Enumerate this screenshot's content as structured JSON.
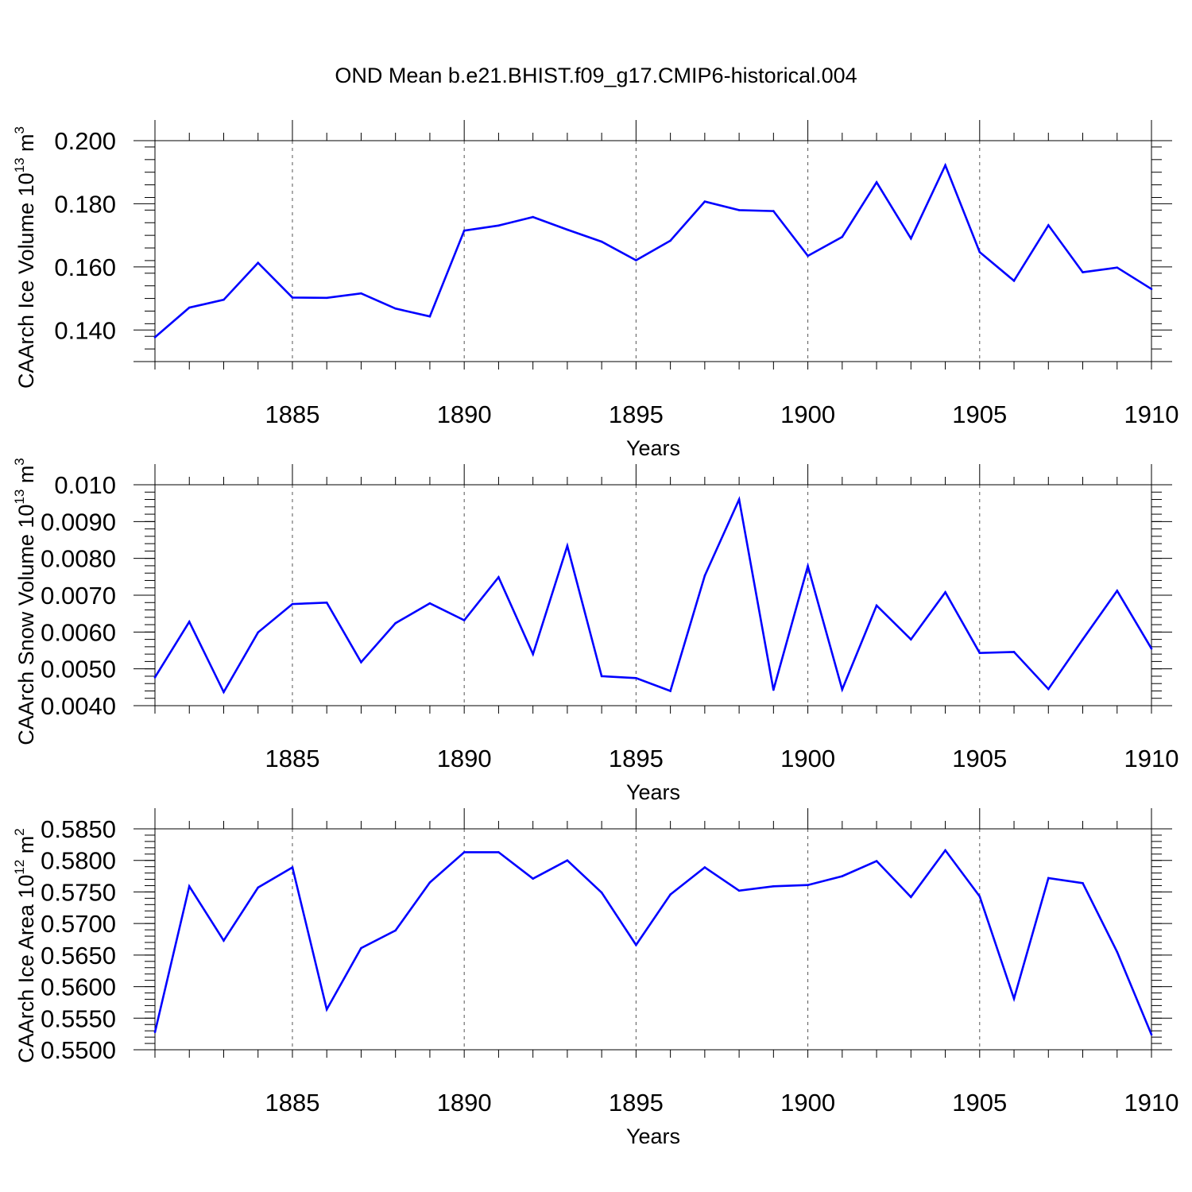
{
  "title": "OND Mean b.e21.BHIST.f09_g17.CMIP6-historical.004",
  "colors": {
    "line": "#0000ff",
    "axis": "#000000",
    "grid": "#555555"
  },
  "chart_data": [
    {
      "type": "line",
      "id": "ice-volume",
      "ylabel_main": "CAArch Ice Volume 10",
      "ylabel_sup1": "13",
      "ylabel_mid": " m",
      "ylabel_sup2": "3",
      "xlabel": "Years",
      "xlim": [
        1881,
        1910
      ],
      "ylim": [
        0.13,
        0.2
      ],
      "yticks": [
        0.14,
        0.16,
        0.18,
        0.2
      ],
      "ytick_labels": [
        "0.140",
        "0.160",
        "0.180",
        "0.200"
      ],
      "xticks": [
        1885,
        1890,
        1895,
        1900,
        1905,
        1910
      ],
      "xtick_labels": [
        "1885",
        "1890",
        "1895",
        "1900",
        "1905",
        "1910"
      ],
      "x": [
        1881,
        1882,
        1883,
        1884,
        1885,
        1886,
        1887,
        1888,
        1889,
        1890,
        1891,
        1892,
        1893,
        1894,
        1895,
        1896,
        1897,
        1898,
        1899,
        1900,
        1901,
        1902,
        1903,
        1904,
        1905,
        1906,
        1907,
        1908,
        1909,
        1910
      ],
      "values": [
        0.1377,
        0.1471,
        0.1496,
        0.1613,
        0.1503,
        0.1502,
        0.1516,
        0.1468,
        0.1443,
        0.1715,
        0.1731,
        0.1758,
        0.1718,
        0.168,
        0.1621,
        0.1683,
        0.1807,
        0.178,
        0.1777,
        0.1635,
        0.1695,
        0.1868,
        0.169,
        0.1922,
        0.1647,
        0.1556,
        0.1732,
        0.1583,
        0.1598,
        0.153
      ]
    },
    {
      "type": "line",
      "id": "snow-volume",
      "ylabel_main": "CAArch Snow Volume 10",
      "ylabel_sup1": "13",
      "ylabel_mid": " m",
      "ylabel_sup2": "3",
      "xlabel": "Years",
      "xlim": [
        1881,
        1910
      ],
      "ylim": [
        0.004,
        0.01
      ],
      "yticks": [
        0.004,
        0.005,
        0.006,
        0.007,
        0.008,
        0.009,
        0.01
      ],
      "ytick_labels": [
        "0.0040",
        "0.0050",
        "0.0060",
        "0.0070",
        "0.0080",
        "0.0090",
        "0.010"
      ],
      "xticks": [
        1885,
        1890,
        1895,
        1900,
        1905,
        1910
      ],
      "xtick_labels": [
        "1885",
        "1890",
        "1895",
        "1900",
        "1905",
        "1910"
      ],
      "x": [
        1881,
        1882,
        1883,
        1884,
        1885,
        1886,
        1887,
        1888,
        1889,
        1890,
        1891,
        1892,
        1893,
        1894,
        1895,
        1896,
        1897,
        1898,
        1899,
        1900,
        1901,
        1902,
        1903,
        1904,
        1905,
        1906,
        1907,
        1908,
        1909,
        1910
      ],
      "values": [
        0.00477,
        0.00628,
        0.00437,
        0.00599,
        0.00676,
        0.0068,
        0.00518,
        0.00624,
        0.00678,
        0.00632,
        0.00749,
        0.0054,
        0.00834,
        0.0048,
        0.00475,
        0.0044,
        0.00753,
        0.0096,
        0.00443,
        0.00779,
        0.00444,
        0.00672,
        0.0058,
        0.00708,
        0.00543,
        0.00546,
        0.00445,
        0.0058,
        0.00712,
        0.00555
      ]
    },
    {
      "type": "line",
      "id": "ice-area",
      "ylabel_main": "CAArch Ice Area 10",
      "ylabel_sup1": "12",
      "ylabel_mid": " m",
      "ylabel_sup2": "2",
      "xlabel": "Years",
      "xlim": [
        1881,
        1910
      ],
      "ylim": [
        0.55,
        0.585
      ],
      "yticks": [
        0.55,
        0.555,
        0.56,
        0.565,
        0.57,
        0.575,
        0.58,
        0.585
      ],
      "ytick_labels": [
        "0.5500",
        "0.5550",
        "0.5600",
        "0.5650",
        "0.5700",
        "0.5750",
        "0.5800",
        "0.5850"
      ],
      "xticks": [
        1885,
        1890,
        1895,
        1900,
        1905,
        1910
      ],
      "xtick_labels": [
        "1885",
        "1890",
        "1895",
        "1900",
        "1905",
        "1910"
      ],
      "x": [
        1881,
        1882,
        1883,
        1884,
        1885,
        1886,
        1887,
        1888,
        1889,
        1890,
        1891,
        1892,
        1893,
        1894,
        1895,
        1896,
        1897,
        1898,
        1899,
        1900,
        1901,
        1902,
        1903,
        1904,
        1905,
        1906,
        1907,
        1908,
        1909,
        1910
      ],
      "values": [
        0.5528,
        0.5759,
        0.5673,
        0.5757,
        0.5789,
        0.5564,
        0.5661,
        0.5689,
        0.5765,
        0.5813,
        0.5813,
        0.5771,
        0.58,
        0.5749,
        0.5666,
        0.5746,
        0.5789,
        0.5752,
        0.5759,
        0.5761,
        0.5775,
        0.5799,
        0.5742,
        0.5816,
        0.5743,
        0.5581,
        0.5772,
        0.5764,
        0.5655,
        0.5524
      ]
    }
  ]
}
